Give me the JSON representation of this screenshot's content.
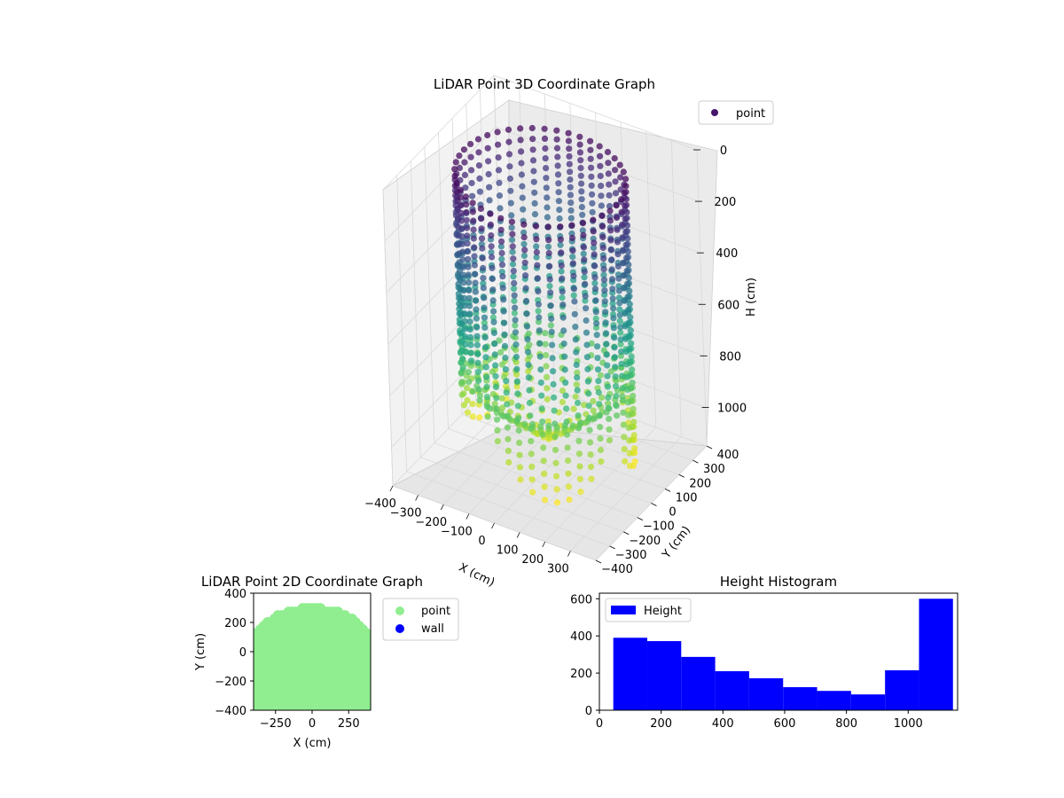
{
  "chart_data": [
    {
      "type": "scatter",
      "projection": "3d",
      "title": "LiDAR Point 3D Coordinate Graph",
      "xlabel": "X (cm)",
      "ylabel": "Y (cm)",
      "zlabel": "H (cm)",
      "xlim": [
        -400,
        400
      ],
      "ylim": [
        -400,
        400
      ],
      "zlim": [
        1150,
        0
      ],
      "z_axis_inverted": true,
      "xticks": [
        "−400",
        "−300",
        "−200",
        "−100",
        "0",
        "100",
        "200",
        "300"
      ],
      "yticks": [
        "−400",
        "−300",
        "−200",
        "−100",
        "0",
        "100",
        "200",
        "300",
        "400"
      ],
      "zticks": [
        "0",
        "200",
        "400",
        "600",
        "800",
        "1000"
      ],
      "legend": {
        "placement": "top-right",
        "entries": [
          "point"
        ]
      },
      "colormap": "viridis",
      "color_by": "height",
      "grid": true,
      "description_of_data": "Approx. 2000 points forming a circular-walled room, radius ~300 cm, height 0–1100 cm, colored by height (purple top, yellow bottom)",
      "point_cloud": {
        "radius": 300,
        "height_max": 1100
      }
    },
    {
      "type": "scatter",
      "title": "LiDAR Point 2D Coordinate Graph",
      "xlabel": "X (cm)",
      "ylabel": "Y (cm)",
      "xlim": [
        -400,
        400
      ],
      "ylim": [
        -400,
        400
      ],
      "xticks": [
        "−250",
        "0",
        "250"
      ],
      "yticks": [
        "−400",
        "−200",
        "0",
        "200",
        "400"
      ],
      "legend": {
        "placement": "outside-right",
        "entries": [
          "point",
          "wall"
        ]
      },
      "series": [
        {
          "name": "point",
          "color": "#90ee90"
        },
        {
          "name": "wall",
          "color": "#0000ff"
        }
      ]
    },
    {
      "type": "bar",
      "title": "Height Histogram",
      "legend": {
        "placement": "top-left",
        "entries": [
          "Height"
        ]
      },
      "color": "#0000ff",
      "xlim": [
        0,
        1160
      ],
      "ylim": [
        0,
        630
      ],
      "xticks": [
        "0",
        "200",
        "400",
        "600",
        "800",
        "1000"
      ],
      "yticks": [
        "0",
        "200",
        "400",
        "600"
      ],
      "bins": [
        {
          "x0": 45,
          "x1": 155,
          "value": 390
        },
        {
          "x0": 155,
          "x1": 265,
          "value": 372
        },
        {
          "x0": 265,
          "x1": 375,
          "value": 287
        },
        {
          "x0": 375,
          "x1": 485,
          "value": 210
        },
        {
          "x0": 485,
          "x1": 595,
          "value": 172
        },
        {
          "x0": 595,
          "x1": 705,
          "value": 124
        },
        {
          "x0": 705,
          "x1": 815,
          "value": 104
        },
        {
          "x0": 815,
          "x1": 925,
          "value": 85
        },
        {
          "x0": 925,
          "x1": 1035,
          "value": 215
        },
        {
          "x0": 1035,
          "x1": 1145,
          "value": 600
        }
      ]
    }
  ]
}
